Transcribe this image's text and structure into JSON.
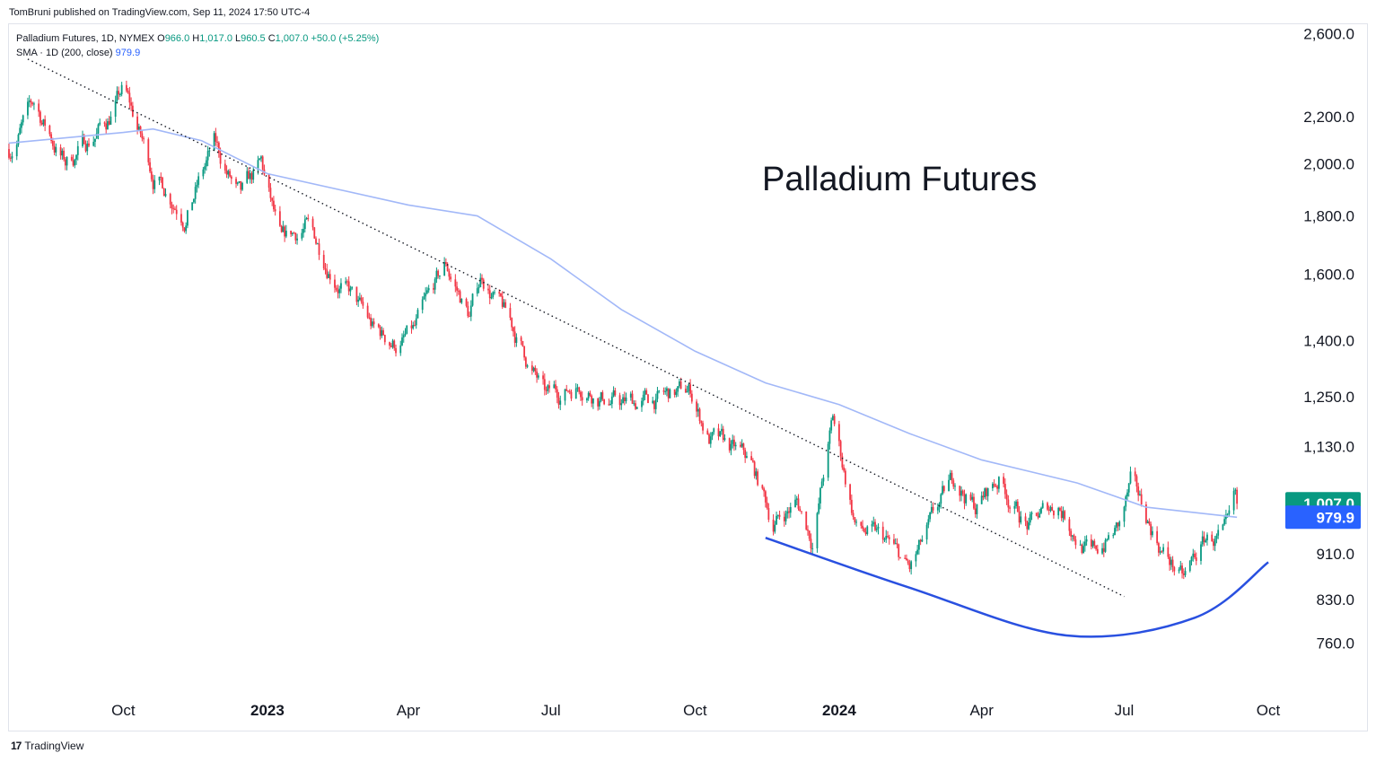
{
  "header": {
    "published": "TomBruni published on TradingView.com, Sep 11, 2024 17:50 UTC-4"
  },
  "legend": {
    "symbol": "Palladium Futures, 1D, NYMEX",
    "open_label": "O",
    "open": "966.0",
    "high_label": "H",
    "high": "1,017.0",
    "low_label": "L",
    "low": "960.5",
    "close_label": "C",
    "close": "1,007.0",
    "change": "+50.0 (+5.25%)",
    "sma_label": "SMA · 1D (200, close)",
    "sma_value": "979.9"
  },
  "footer": {
    "logo_glyph": "17",
    "brand": "TradingView"
  },
  "colors": {
    "up": "#089981",
    "down": "#f23645",
    "sma": "#a2b8f8",
    "accent_blue": "#2962ff",
    "arc": "#2950e0",
    "trendline": "#131722"
  },
  "chart_data": {
    "type": "candlestick",
    "title": "Palladium Futures",
    "scale": "log",
    "ylim": [
      700,
      2650
    ],
    "y_ticks": [
      "2,600.0",
      "2,200.0",
      "2,000.0",
      "1,800.0",
      "1,600.0",
      "1,400.0",
      "1,250.0",
      "1,130.0",
      "910.0",
      "830.0",
      "760.0"
    ],
    "y_tick_values": [
      2600,
      2200,
      2000,
      1800,
      1600,
      1400,
      1250,
      1130,
      910,
      830,
      760
    ],
    "x_ticks": [
      "Oct",
      "2023",
      "Apr",
      "Jul",
      "Oct",
      "2024",
      "Apr",
      "Jul",
      "Oct"
    ],
    "x_tick_dates": [
      "2022-10-01",
      "2023-01-01",
      "2023-04-01",
      "2023-07-01",
      "2023-10-01",
      "2024-01-01",
      "2024-04-01",
      "2024-07-01",
      "2024-10-01"
    ],
    "x_bold": [
      false,
      true,
      false,
      false,
      false,
      true,
      false,
      false,
      false
    ],
    "x_range": [
      "2022-07-20",
      "2024-10-05"
    ],
    "price_keypoints": [
      {
        "date": "2022-07-20",
        "value": 2060
      },
      {
        "date": "2022-08-05",
        "value": 2250
      },
      {
        "date": "2022-08-25",
        "value": 2000
      },
      {
        "date": "2022-09-20",
        "value": 2180
      },
      {
        "date": "2022-10-01",
        "value": 2320
      },
      {
        "date": "2022-10-20",
        "value": 1960
      },
      {
        "date": "2022-11-10",
        "value": 1820
      },
      {
        "date": "2022-11-28",
        "value": 2070
      },
      {
        "date": "2022-12-15",
        "value": 1850
      },
      {
        "date": "2022-12-28",
        "value": 1980
      },
      {
        "date": "2023-01-10",
        "value": 1680
      },
      {
        "date": "2023-01-25",
        "value": 1760
      },
      {
        "date": "2023-02-20",
        "value": 1560
      },
      {
        "date": "2023-03-10",
        "value": 1420
      },
      {
        "date": "2023-03-25",
        "value": 1390
      },
      {
        "date": "2023-04-05",
        "value": 1420
      },
      {
        "date": "2023-04-25",
        "value": 1620
      },
      {
        "date": "2023-05-10",
        "value": 1470
      },
      {
        "date": "2023-05-18",
        "value": 1600
      },
      {
        "date": "2023-06-10",
        "value": 1400
      },
      {
        "date": "2023-06-28",
        "value": 1240
      },
      {
        "date": "2023-07-20",
        "value": 1290
      },
      {
        "date": "2023-08-15",
        "value": 1230
      },
      {
        "date": "2023-09-05",
        "value": 1240
      },
      {
        "date": "2023-09-28",
        "value": 1260
      },
      {
        "date": "2023-10-10",
        "value": 1150
      },
      {
        "date": "2023-11-05",
        "value": 1090
      },
      {
        "date": "2023-11-20",
        "value": 970
      },
      {
        "date": "2023-12-05",
        "value": 1010
      },
      {
        "date": "2023-12-15",
        "value": 940
      },
      {
        "date": "2023-12-28",
        "value": 1190
      },
      {
        "date": "2024-01-12",
        "value": 960
      },
      {
        "date": "2024-02-01",
        "value": 925
      },
      {
        "date": "2024-02-15",
        "value": 875
      },
      {
        "date": "2024-03-01",
        "value": 965
      },
      {
        "date": "2024-03-15",
        "value": 1060
      },
      {
        "date": "2024-03-28",
        "value": 1000
      },
      {
        "date": "2024-04-12",
        "value": 1060
      },
      {
        "date": "2024-05-01",
        "value": 960
      },
      {
        "date": "2024-05-20",
        "value": 1010
      },
      {
        "date": "2024-06-10",
        "value": 905
      },
      {
        "date": "2024-06-28",
        "value": 960
      },
      {
        "date": "2024-07-05",
        "value": 1040
      },
      {
        "date": "2024-07-25",
        "value": 920
      },
      {
        "date": "2024-08-08",
        "value": 860
      },
      {
        "date": "2024-08-22",
        "value": 935
      },
      {
        "date": "2024-09-05",
        "value": 940
      },
      {
        "date": "2024-09-11",
        "value": 1007
      }
    ],
    "series": [
      {
        "name": "SMA · 1D (200, close)",
        "points": [
          {
            "date": "2022-07-20",
            "value": 2085
          },
          {
            "date": "2022-10-01",
            "value": 2130
          },
          {
            "date": "2022-10-20",
            "value": 2145
          },
          {
            "date": "2022-11-20",
            "value": 2095
          },
          {
            "date": "2023-01-01",
            "value": 1960
          },
          {
            "date": "2023-04-01",
            "value": 1840
          },
          {
            "date": "2023-05-15",
            "value": 1800
          },
          {
            "date": "2023-07-01",
            "value": 1650
          },
          {
            "date": "2023-08-15",
            "value": 1490
          },
          {
            "date": "2023-10-01",
            "value": 1370
          },
          {
            "date": "2023-11-15",
            "value": 1285
          },
          {
            "date": "2024-01-01",
            "value": 1230
          },
          {
            "date": "2024-02-15",
            "value": 1160
          },
          {
            "date": "2024-04-01",
            "value": 1100
          },
          {
            "date": "2024-06-01",
            "value": 1050
          },
          {
            "date": "2024-07-15",
            "value": 1000
          },
          {
            "date": "2024-09-11",
            "value": 979.9
          }
        ]
      }
    ],
    "trendline": {
      "start": {
        "date": "2022-08-01",
        "value": 2470
      },
      "end": {
        "date": "2024-07-01",
        "value": 835
      },
      "style": "dotted"
    },
    "arc": [
      {
        "date": "2023-11-15",
        "value": 940
      },
      {
        "date": "2024-02-15",
        "value": 850
      },
      {
        "date": "2024-05-25",
        "value": 772
      },
      {
        "date": "2024-08-15",
        "value": 800
      },
      {
        "date": "2024-10-01",
        "value": 895
      }
    ],
    "last_price_label": "1,007.0",
    "last_price": 1007.0,
    "sma_price_label": "979.9",
    "sma_price": 979.9,
    "grid": false
  }
}
